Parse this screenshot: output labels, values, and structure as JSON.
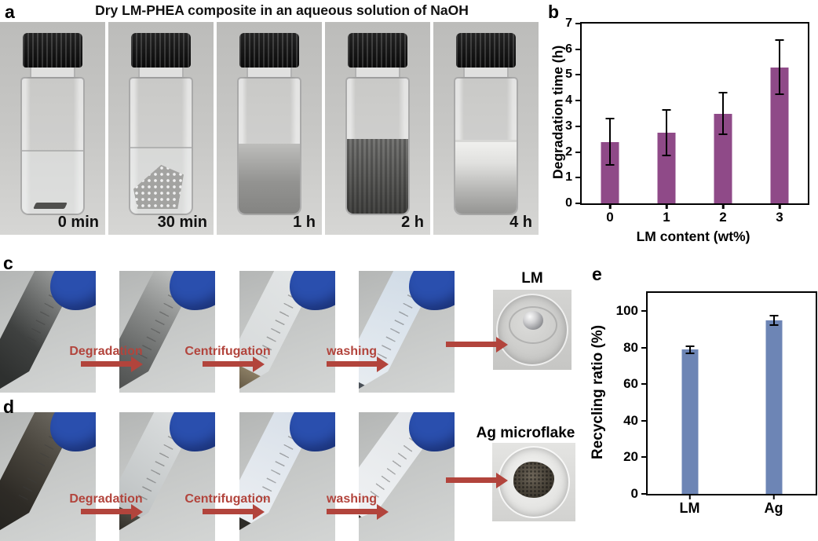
{
  "figure": {
    "panel_a": {
      "label": "a",
      "title": "Dry LM-PHEA composite in an aqueous solution of NaOH",
      "photos": [
        {
          "time_label": "0 min",
          "description": "sealed glass vial, clear NaOH solution, small dark dry LM-PHEA flake at bottom"
        },
        {
          "time_label": "30 min",
          "description": "composite swollen into grey porous lump in solution"
        },
        {
          "time_label": "1 h",
          "description": "grey cloudy suspension in lower half of vial"
        },
        {
          "time_label": "2 h",
          "description": "dark grey dense suspension"
        },
        {
          "time_label": "4 h",
          "description": "lighter settled grey suspension"
        }
      ]
    },
    "panel_b": {
      "label": "b"
    },
    "panel_c": {
      "label": "c",
      "steps": [
        {
          "label": "Degradation"
        },
        {
          "label": "Centrifugation"
        },
        {
          "label": "washing"
        }
      ],
      "result_label": "LM",
      "description": "centrifuge-tube sequence held by blue gloved hand, recovering a liquid-metal droplet on a petri dish"
    },
    "panel_d": {
      "label": "d",
      "steps": [
        {
          "label": "Degradation"
        },
        {
          "label": "Centrifugation"
        },
        {
          "label": "washing"
        }
      ],
      "result_label": "Ag microflake",
      "description": "centrifuge-tube sequence recovering dark Ag microflake powder on a petri dish"
    },
    "panel_e": {
      "label": "e"
    }
  },
  "chart_data": [
    {
      "id": "degradation-time",
      "panel": "b",
      "type": "bar",
      "categories": [
        "0",
        "1",
        "2",
        "3"
      ],
      "values": [
        2.4,
        2.75,
        3.5,
        5.3
      ],
      "errors": [
        0.9,
        0.9,
        0.8,
        1.05
      ],
      "title": "",
      "xlabel": "LM content (wt%)",
      "ylabel": "Degradation time (h)",
      "ylim": [
        0,
        7
      ],
      "yticks": [
        0,
        1,
        2,
        3,
        4,
        5,
        6,
        7
      ],
      "grid": false,
      "legend": false,
      "bar_color": "#8F4A88"
    },
    {
      "id": "recycling-ratio",
      "panel": "e",
      "type": "bar",
      "categories": [
        "LM",
        "Ag"
      ],
      "values": [
        79,
        95
      ],
      "errors": [
        2,
        2.5
      ],
      "title": "",
      "xlabel": "",
      "ylabel": "Recycling ratio (%)",
      "ylim": [
        0,
        110
      ],
      "yticks": [
        0,
        20,
        40,
        60,
        80,
        100
      ],
      "grid": false,
      "legend": false,
      "bar_color": "#6D85B5"
    }
  ],
  "colors": {
    "bar_purple": "#8F4A88",
    "bar_blue": "#6D85B5",
    "arrow_red": "#B2443C",
    "axis": "#000000",
    "glove_blue": "#2A4FAE",
    "photo_background": "#C8C8C6"
  }
}
